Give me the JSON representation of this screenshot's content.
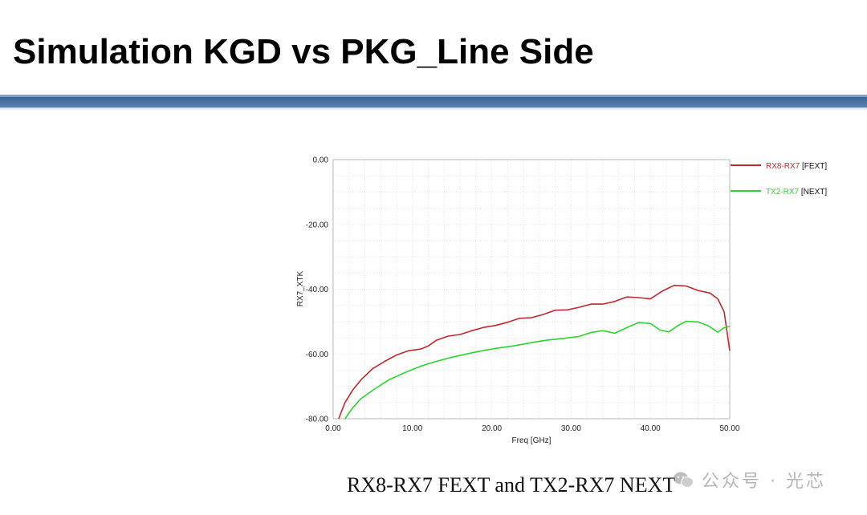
{
  "slide": {
    "title": "Simulation KGD vs PKG_Line Side",
    "caption": "RX8-RX7 FEXT and TX2-RX7 NEXT",
    "watermark": "公众号 · 光芯"
  },
  "chart_data": {
    "type": "line",
    "xlabel": "Freq [GHz]",
    "ylabel": "RX7_XTK",
    "xlim": [
      0,
      50
    ],
    "ylim": [
      -80,
      0
    ],
    "x_ticks": [
      "0.00",
      "10.00",
      "20.00",
      "30.00",
      "40.00",
      "50.00"
    ],
    "y_ticks": [
      "0.00",
      "-20.00",
      "-40.00",
      "-60.00",
      "-80.00"
    ],
    "grid": true,
    "legend_position": "right",
    "series": [
      {
        "name": "RX8-RX7",
        "tag": "[FEXT]",
        "color": "#c0282d",
        "x": [
          0.7,
          1.5,
          2.5,
          3.5,
          5,
          6.5,
          8,
          9.5,
          11,
          12,
          13,
          14.5,
          16,
          17.5,
          19,
          20.5,
          22,
          23.5,
          25,
          26.5,
          28,
          29.5,
          31,
          32.5,
          34,
          35.5,
          37,
          38.5,
          40,
          41.5,
          43,
          44.5,
          46,
          47.5,
          48.5,
          49.3,
          50
        ],
        "y": [
          -80,
          -75,
          -71,
          -68,
          -64.5,
          -62.3,
          -60.3,
          -59,
          -58.5,
          -57.5,
          -55.8,
          -54.5,
          -54,
          -52.8,
          -51.8,
          -51.2,
          -50.2,
          -49,
          -48.8,
          -47.8,
          -46.5,
          -46.4,
          -45.6,
          -44.6,
          -44.6,
          -43.8,
          -42.4,
          -42.6,
          -43,
          -40.6,
          -38.8,
          -39,
          -40.4,
          -41.2,
          -43,
          -47,
          -59
        ]
      },
      {
        "name": "TX2-RX7",
        "tag": "[NEXT]",
        "color": "#2ed22e",
        "x": [
          1.5,
          2.5,
          3.5,
          5,
          7,
          9,
          11,
          13,
          15,
          17,
          19,
          21,
          23,
          25,
          27,
          29,
          31,
          32.5,
          34,
          35.5,
          37,
          38.5,
          40,
          41.2,
          42.3,
          43.5,
          44.5,
          46,
          47.3,
          48.5,
          49.2,
          50
        ],
        "y": [
          -80,
          -76.5,
          -73.8,
          -71.2,
          -68,
          -65.8,
          -63.8,
          -62.3,
          -61,
          -59.9,
          -58.9,
          -58.1,
          -57.4,
          -56.5,
          -55.7,
          -55.2,
          -54.6,
          -53.4,
          -52.8,
          -53.6,
          -51.9,
          -50.3,
          -50.6,
          -52.6,
          -53.2,
          -51.2,
          -49.9,
          -50.1,
          -51.3,
          -53.3,
          -52.0,
          -51.5
        ]
      }
    ]
  }
}
